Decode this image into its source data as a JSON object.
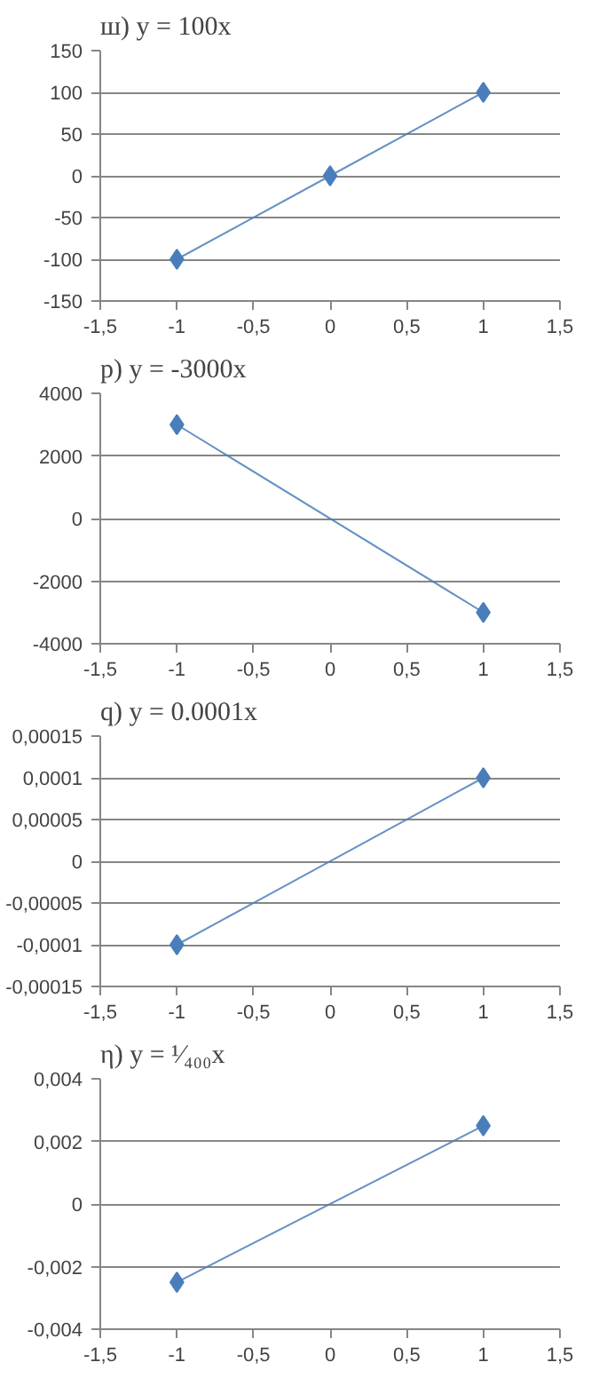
{
  "chart_data": [
    {
      "type": "line",
      "title": "ш) y = 100x",
      "x": [
        -1,
        0,
        1
      ],
      "series": [
        {
          "color": "#4a7ebb",
          "values": [
            -100,
            0,
            100
          ]
        }
      ],
      "marker": "diamond",
      "grid": "y",
      "xlim": [
        -1.5,
        1.5
      ],
      "ylim": [
        -150,
        150
      ],
      "xticks": [
        {
          "value": -1.5,
          "label": "-1,5"
        },
        -1,
        {
          "value": -0.5,
          "label": "-0,5"
        },
        0,
        {
          "value": 0.5,
          "label": "0,5"
        },
        1,
        {
          "value": 1.5,
          "label": "1,5"
        }
      ],
      "yticks": [
        -150,
        -100,
        -50,
        0,
        50,
        100,
        150
      ]
    },
    {
      "type": "line",
      "title": "p) y = -3000x",
      "x": [
        -1,
        1
      ],
      "series": [
        {
          "color": "#4a7ebb",
          "values": [
            3000,
            -3000
          ]
        }
      ],
      "marker": "diamond",
      "grid": "y",
      "xlim": [
        -1.5,
        1.5
      ],
      "ylim": [
        -4000,
        4000
      ],
      "xticks": [
        {
          "value": -1.5,
          "label": "-1,5"
        },
        -1,
        {
          "value": -0.5,
          "label": "-0,5"
        },
        0,
        {
          "value": 0.5,
          "label": "0,5"
        },
        1,
        {
          "value": 1.5,
          "label": "1,5"
        }
      ],
      "yticks": [
        -4000,
        -2000,
        0,
        2000,
        4000
      ]
    },
    {
      "type": "line",
      "title": "q) y = 0.0001x",
      "x": [
        -1,
        1
      ],
      "series": [
        {
          "color": "#4a7ebb",
          "values": [
            -0.0001,
            0.0001
          ]
        }
      ],
      "marker": "diamond",
      "grid": "y",
      "xlim": [
        -1.5,
        1.5
      ],
      "ylim": [
        -0.00015,
        0.00015
      ],
      "xticks": [
        {
          "value": -1.5,
          "label": "-1,5"
        },
        -1,
        {
          "value": -0.5,
          "label": "-0,5"
        },
        0,
        {
          "value": 0.5,
          "label": "0,5"
        },
        1,
        {
          "value": 1.5,
          "label": "1,5"
        }
      ],
      "yticks": [
        {
          "value": -0.00015,
          "label": "-0,00015"
        },
        {
          "value": -0.0001,
          "label": "-0,0001"
        },
        {
          "value": -5e-05,
          "label": "-0,00005"
        },
        0,
        {
          "value": 5e-05,
          "label": "0,00005"
        },
        {
          "value": 0.0001,
          "label": "0,0001"
        },
        {
          "value": 0.00015,
          "label": "0,00015"
        }
      ]
    },
    {
      "type": "line",
      "title": "η) y = ¹⁄₄₀₀x",
      "x": [
        -1,
        1
      ],
      "series": [
        {
          "color": "#4a7ebb",
          "values": [
            -0.0025,
            0.0025
          ]
        }
      ],
      "marker": "diamond",
      "grid": "y",
      "xlim": [
        -1.5,
        1.5
      ],
      "ylim": [
        -0.004,
        0.004
      ],
      "xticks": [
        {
          "value": -1.5,
          "label": "-1,5"
        },
        -1,
        {
          "value": -0.5,
          "label": "-0,5"
        },
        0,
        {
          "value": 0.5,
          "label": "0,5"
        },
        1,
        {
          "value": 1.5,
          "label": "1,5"
        }
      ],
      "yticks": [
        {
          "value": -0.004,
          "label": "-0,004"
        },
        {
          "value": -0.002,
          "label": "-0,002"
        },
        0,
        {
          "value": 0.002,
          "label": "0,002"
        },
        {
          "value": 0.004,
          "label": "0,004"
        }
      ]
    }
  ]
}
